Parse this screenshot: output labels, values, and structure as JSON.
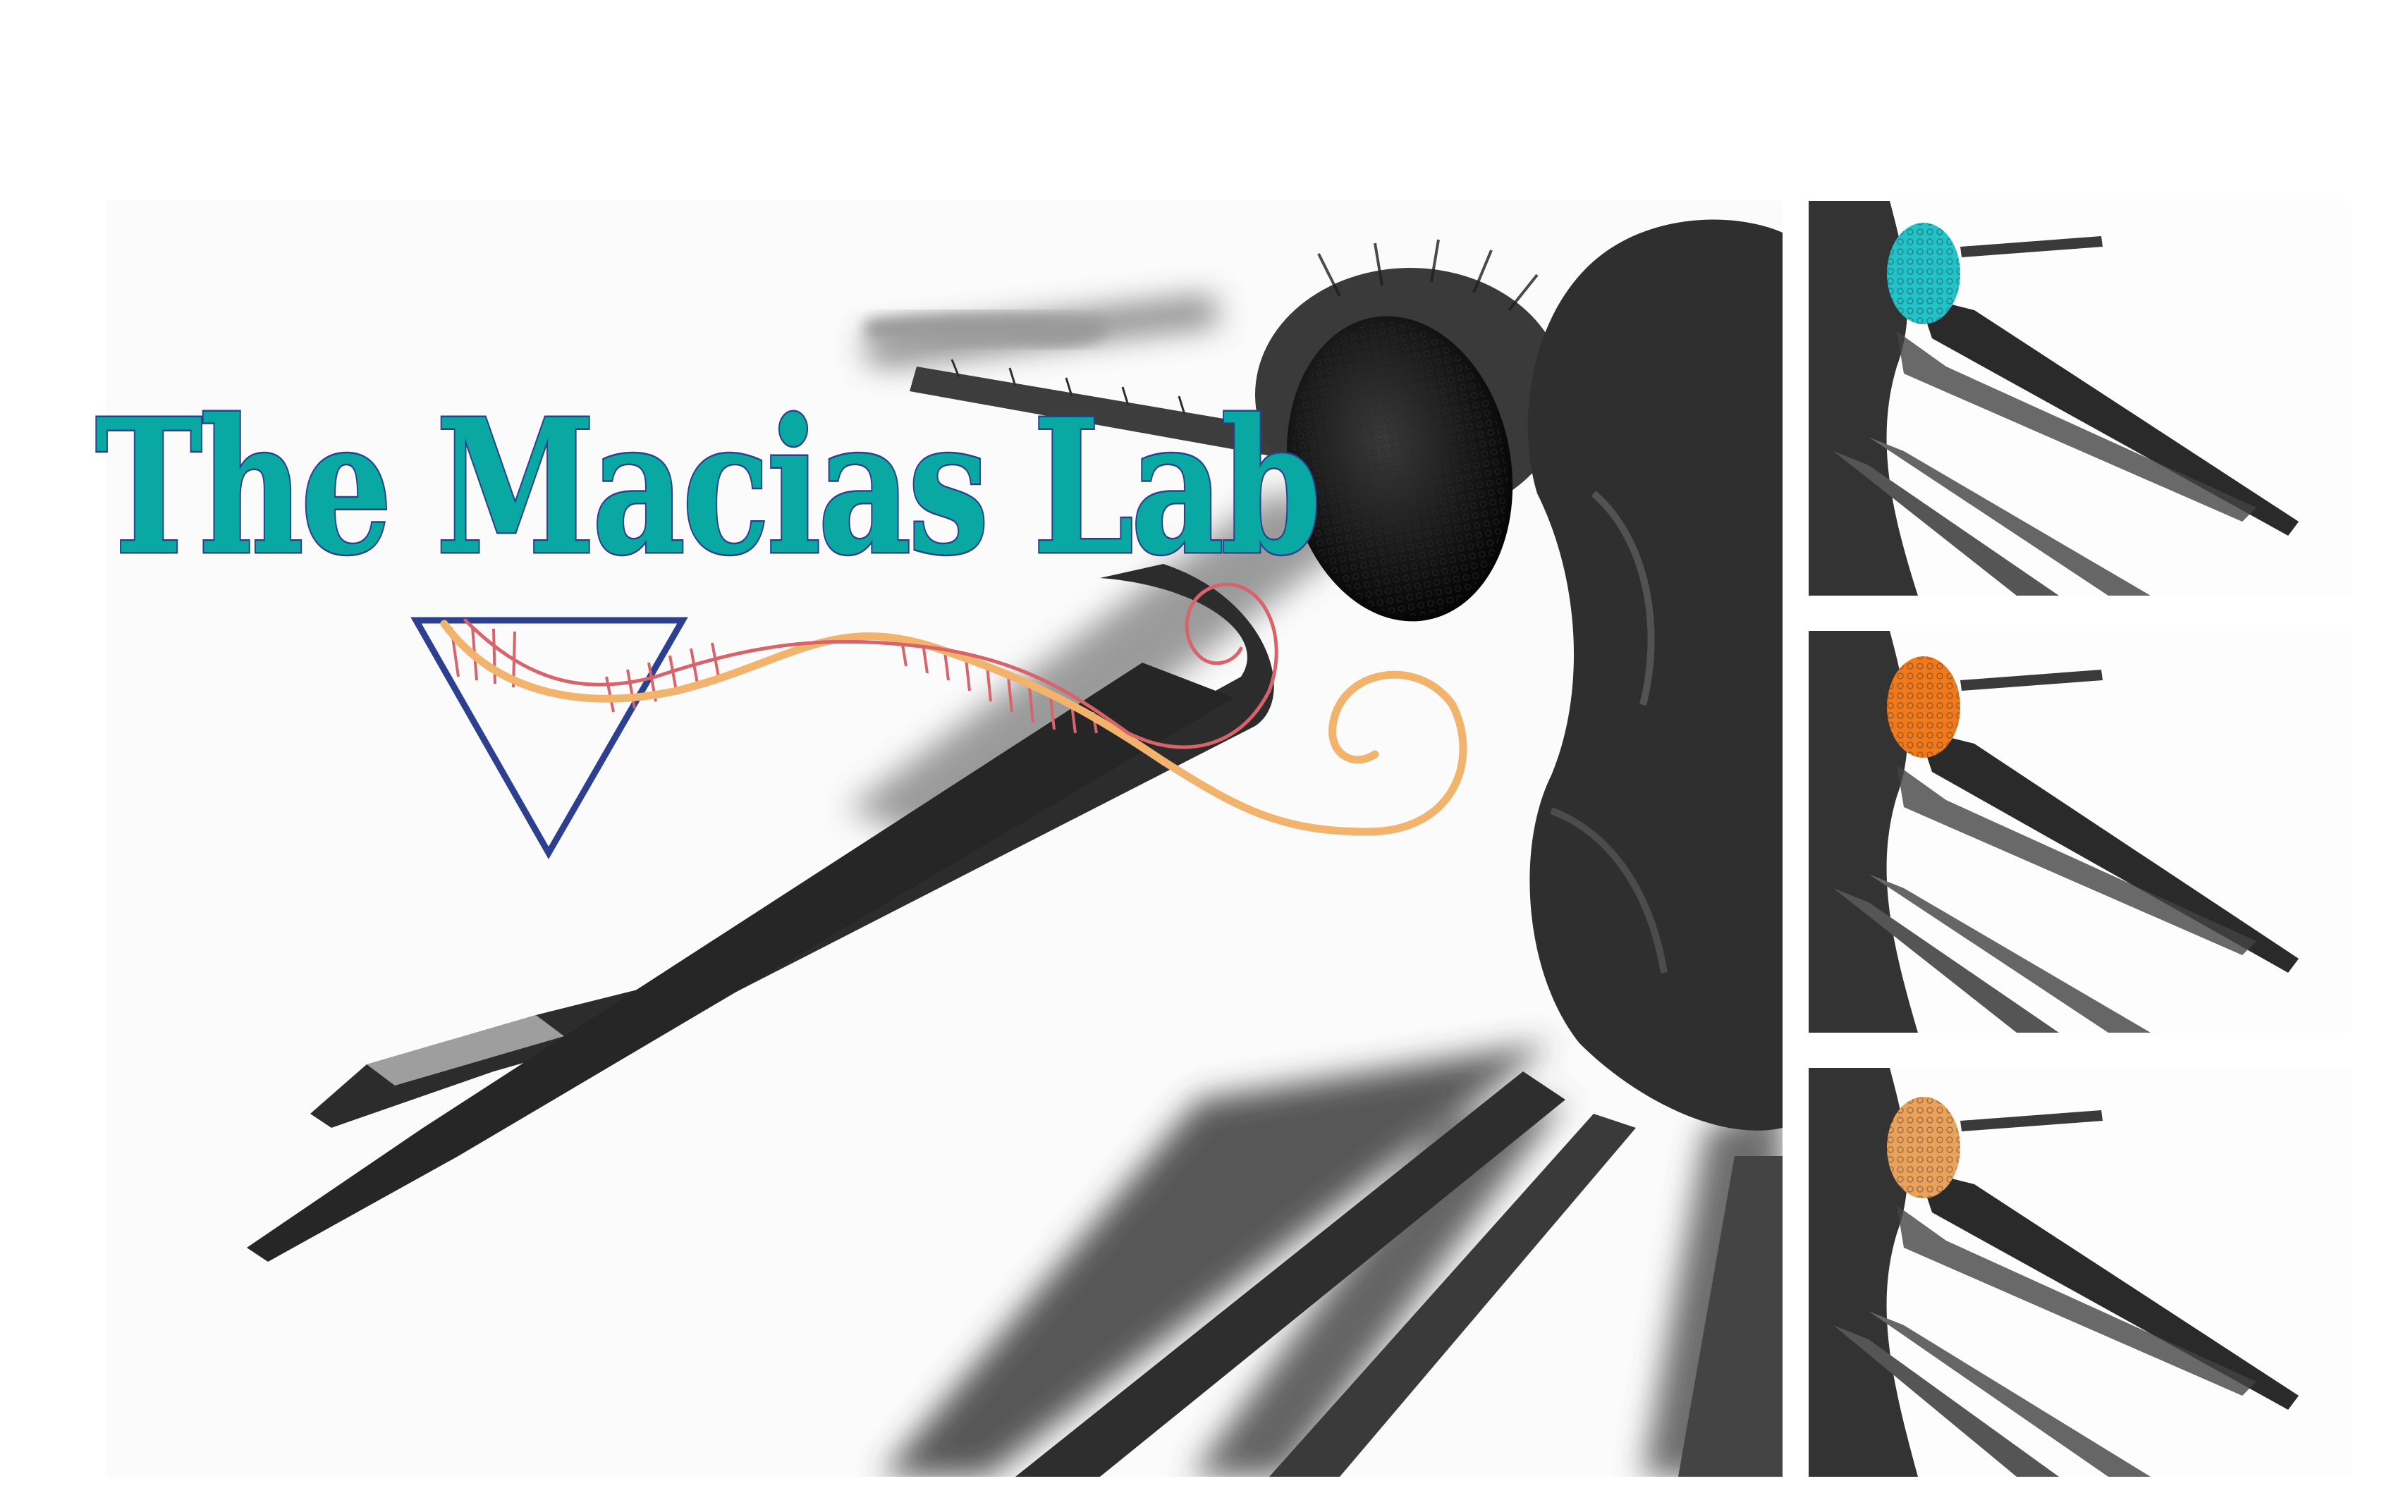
{
  "logo": {
    "title": "The Macias Lab",
    "title_color": "#0aa8a3",
    "title_outline_color": "#2d3f8f",
    "triangle_color": "#2d3f8f",
    "helix_strand_color": "#f2b36c",
    "helix_rung_color": "#d9636a"
  },
  "panels": {
    "main_photo": "mosquito-head-closeup",
    "thumbnails": [
      {
        "eye_color": "#22c2c9"
      },
      {
        "eye_color": "#f07a1b"
      },
      {
        "eye_color": "#eaa15a"
      }
    ]
  }
}
